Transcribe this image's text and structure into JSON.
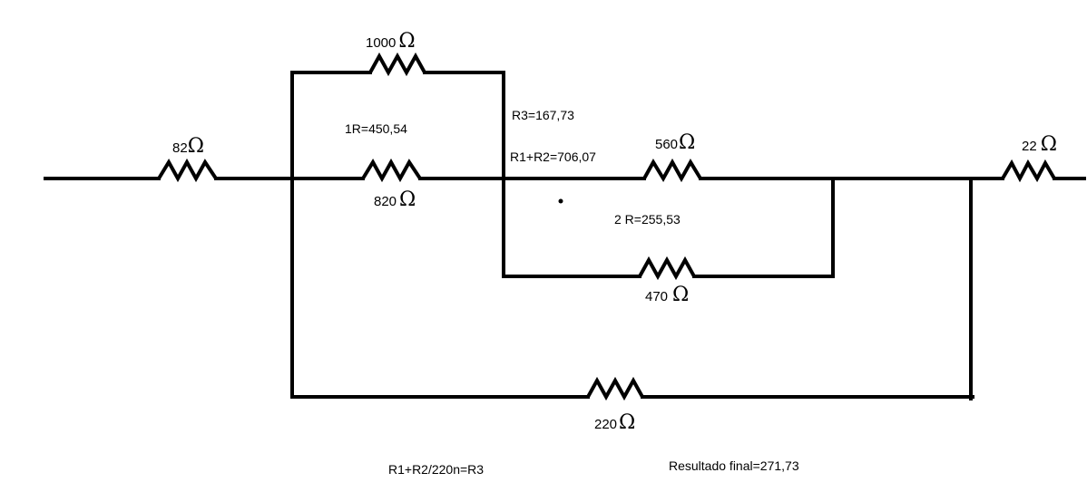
{
  "resistors": {
    "r82": {
      "value": "82",
      "unit": "Ω"
    },
    "r1000": {
      "value": "1000",
      "unit": "Ω"
    },
    "r820": {
      "value": "820",
      "unit": "Ω"
    },
    "r560": {
      "value": "560",
      "unit": "Ω"
    },
    "r470": {
      "value": "470",
      "unit": "Ω"
    },
    "r220": {
      "value": "220",
      "unit": "Ω"
    },
    "r22": {
      "value": "22",
      "unit": "Ω"
    }
  },
  "annotations": {
    "r1_result": "1R=450,54",
    "r3_result": "R3=167,73",
    "r1_plus_r2": "R1+R2=706,07",
    "r2_result": "2 R=255,53",
    "formula": "R1+R2/220n=R3",
    "final": "Resultado final=271,73"
  }
}
